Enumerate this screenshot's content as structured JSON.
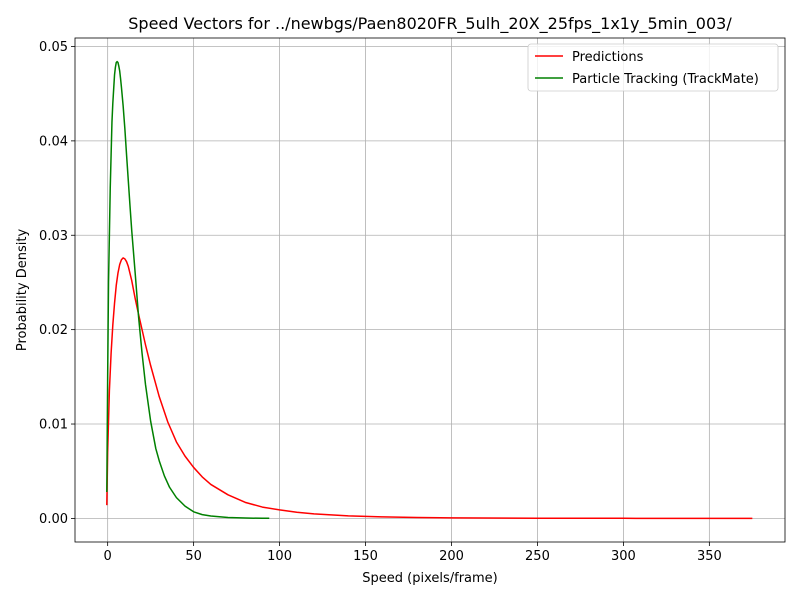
{
  "chart_data": {
    "type": "line",
    "title": "Speed Vectors for ../newbgs/Paen8020FR_5ulh_20X_25fps_1x1y_5min_003/",
    "xlabel": "Speed (pixels/frame)",
    "ylabel": "Probability Density",
    "xlim": [
      -19,
      394
    ],
    "ylim": [
      -0.0025,
      0.0509
    ],
    "xticks": [
      0,
      50,
      100,
      150,
      200,
      250,
      300,
      350
    ],
    "yticks": [
      0.0,
      0.01,
      0.02,
      0.03,
      0.04,
      0.05
    ],
    "xtick_labels": [
      "0",
      "50",
      "100",
      "150",
      "200",
      "250",
      "300",
      "350"
    ],
    "ytick_labels": [
      "0.00",
      "0.01",
      "0.02",
      "0.03",
      "0.04",
      "0.05"
    ],
    "grid": true,
    "legend_position": "upper right",
    "series": [
      {
        "name": "Predictions",
        "color": "#ff0000",
        "x": [
          -0.5,
          0,
          1,
          2,
          3,
          4,
          5,
          6,
          7,
          8,
          9,
          10,
          11,
          12,
          14,
          16,
          18,
          20,
          22,
          25,
          30,
          35,
          40,
          45,
          50,
          55,
          60,
          70,
          80,
          90,
          100,
          110,
          120,
          140,
          160,
          180,
          200,
          250,
          300,
          350,
          375
        ],
        "y": [
          0.0014,
          0.007,
          0.0135,
          0.0175,
          0.0205,
          0.0228,
          0.0247,
          0.026,
          0.0269,
          0.0274,
          0.0276,
          0.0275,
          0.0272,
          0.0267,
          0.0252,
          0.0233,
          0.0216,
          0.02,
          0.0184,
          0.0162,
          0.0129,
          0.0102,
          0.0081,
          0.0066,
          0.0054,
          0.0044,
          0.0036,
          0.0025,
          0.0017,
          0.0012,
          0.0009,
          0.00065,
          0.00048,
          0.00027,
          0.00016,
          0.0001,
          6e-05,
          2e-05,
          1e-05,
          5e-06,
          3e-06
        ]
      },
      {
        "name": "Particle Tracking (TrackMate)",
        "color": "#008000",
        "x": [
          -0.5,
          0,
          0.5,
          1,
          1.5,
          2,
          2.5,
          3,
          3.5,
          4,
          4.5,
          5,
          5.5,
          6,
          6.5,
          7,
          7.5,
          8,
          9,
          10,
          11,
          12,
          13,
          14,
          16,
          18,
          20,
          22,
          25,
          28,
          30,
          33,
          36,
          40,
          45,
          50,
          55,
          60,
          70,
          80,
          90,
          94
        ],
        "y": [
          0.0028,
          0.015,
          0.025,
          0.03,
          0.035,
          0.0385,
          0.042,
          0.044,
          0.0455,
          0.047,
          0.0478,
          0.0483,
          0.0484,
          0.0483,
          0.0479,
          0.0474,
          0.0466,
          0.0457,
          0.0437,
          0.0413,
          0.0385,
          0.0358,
          0.0331,
          0.0305,
          0.026,
          0.0213,
          0.0175,
          0.0142,
          0.0103,
          0.0074,
          0.0061,
          0.0045,
          0.0033,
          0.0022,
          0.0013,
          0.0007,
          0.0004,
          0.00025,
          0.0001,
          4e-05,
          1e-05,
          1e-05
        ]
      }
    ]
  }
}
